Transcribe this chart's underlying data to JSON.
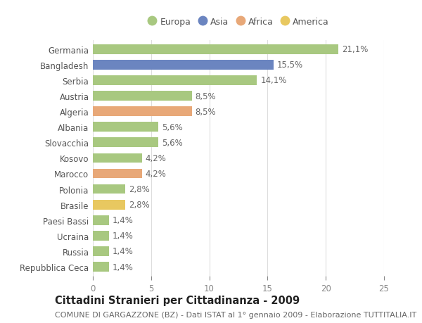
{
  "countries": [
    "Germania",
    "Bangladesh",
    "Serbia",
    "Austria",
    "Algeria",
    "Albania",
    "Slovacchia",
    "Kosovo",
    "Marocco",
    "Polonia",
    "Brasile",
    "Paesi Bassi",
    "Ucraina",
    "Russia",
    "Repubblica Ceca"
  ],
  "values": [
    21.1,
    15.5,
    14.1,
    8.5,
    8.5,
    5.6,
    5.6,
    4.2,
    4.2,
    2.8,
    2.8,
    1.4,
    1.4,
    1.4,
    1.4
  ],
  "labels": [
    "21,1%",
    "15,5%",
    "14,1%",
    "8,5%",
    "8,5%",
    "5,6%",
    "5,6%",
    "4,2%",
    "4,2%",
    "2,8%",
    "2,8%",
    "1,4%",
    "1,4%",
    "1,4%",
    "1,4%"
  ],
  "colors": [
    "#a8c880",
    "#6b85c0",
    "#a8c880",
    "#a8c880",
    "#e8a878",
    "#a8c880",
    "#a8c880",
    "#a8c880",
    "#e8a878",
    "#a8c880",
    "#e8c860",
    "#a8c880",
    "#a8c880",
    "#a8c880",
    "#a8c880"
  ],
  "legend_labels": [
    "Europa",
    "Asia",
    "Africa",
    "America"
  ],
  "legend_colors": [
    "#a8c880",
    "#6b85c0",
    "#e8a878",
    "#e8c860"
  ],
  "title": "Cittadini Stranieri per Cittadinanza - 2009",
  "subtitle": "COMUNE DI GARGAZZONE (BZ) - Dati ISTAT al 1° gennaio 2009 - Elaborazione TUTTITALIA.IT",
  "xlim": [
    0,
    25
  ],
  "xticks": [
    0,
    5,
    10,
    15,
    20,
    25
  ],
  "background_color": "#ffffff",
  "grid_color": "#dddddd",
  "bar_height": 0.62,
  "label_fontsize": 8.5,
  "title_fontsize": 10.5,
  "subtitle_fontsize": 8,
  "tick_fontsize": 8.5,
  "legend_fontsize": 9
}
